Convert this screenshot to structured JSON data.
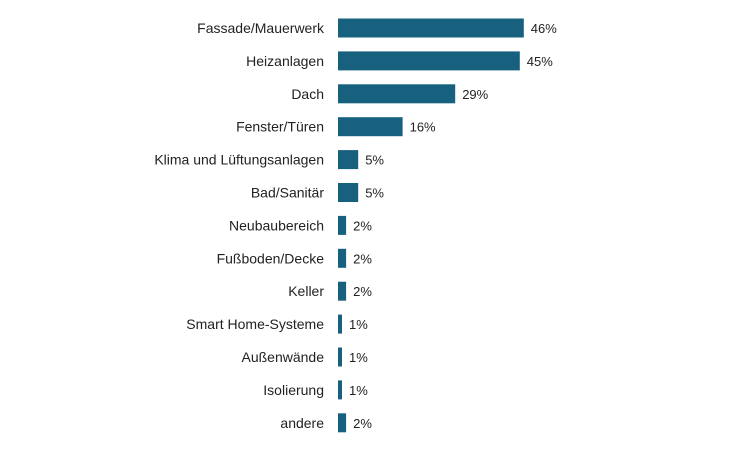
{
  "chart_data": {
    "type": "bar",
    "orientation": "horizontal",
    "categories": [
      "Fassade/Mauerwerk",
      "Heizanlagen",
      "Dach",
      "Fenster/Türen",
      "Klima und Lüftungsanlagen",
      "Bad/Sanitär",
      "Neubaubereich",
      "Fußboden/Decke",
      "Keller",
      "Smart Home-Systeme",
      "Außenwände",
      "Isolierung",
      "andere"
    ],
    "values": [
      46,
      45,
      29,
      16,
      5,
      5,
      2,
      2,
      2,
      1,
      1,
      1,
      2
    ],
    "value_labels": [
      "46%",
      "45%",
      "29%",
      "16%",
      "5%",
      "5%",
      "2%",
      "2%",
      "2%",
      "1%",
      "1%",
      "1%",
      "2%"
    ],
    "unit": "%",
    "bar_color": "#17607e",
    "grid": false,
    "legend": "none"
  }
}
